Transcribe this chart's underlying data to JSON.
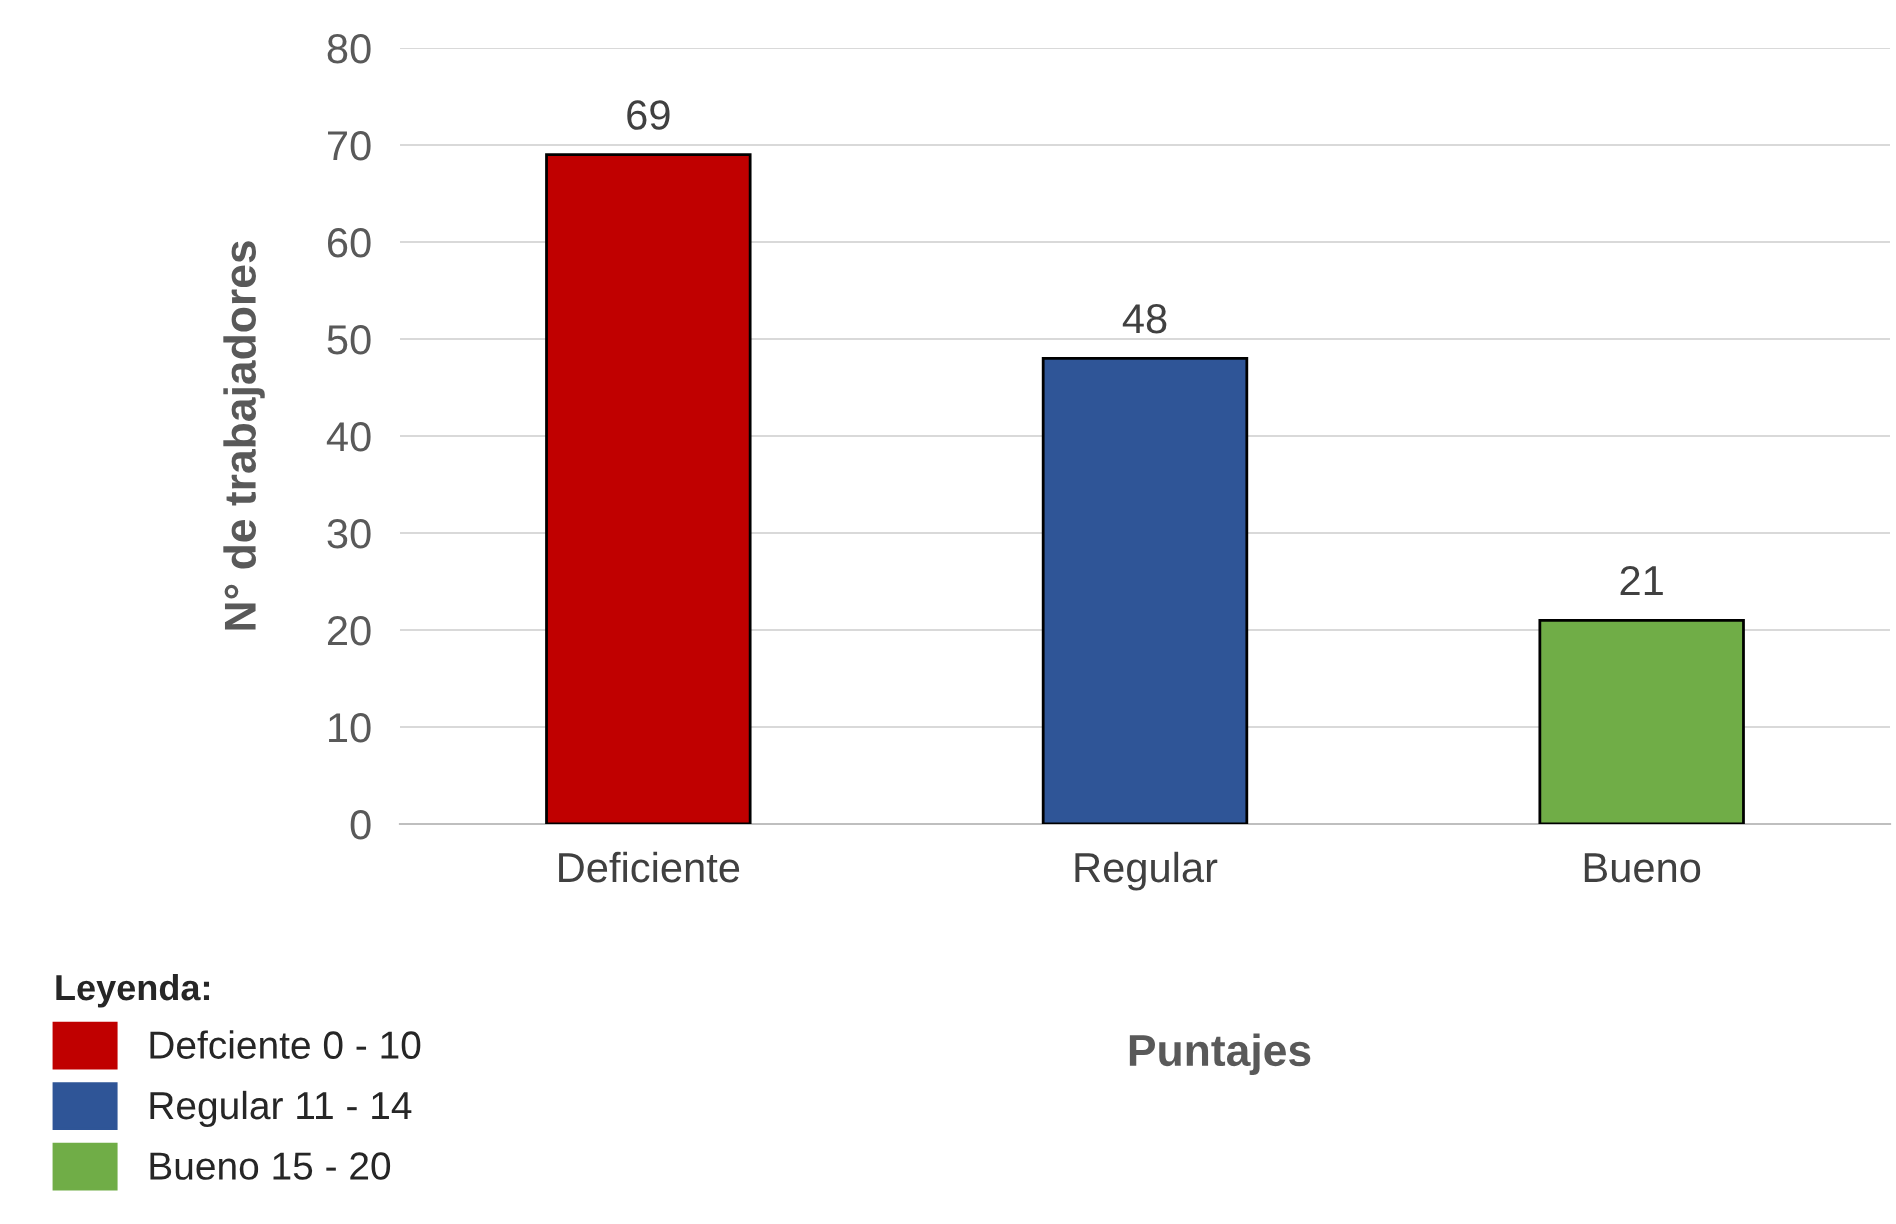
{
  "chart_data": {
    "type": "bar",
    "xlabel": "Puntajes",
    "ylabel": "N° de trabajadores",
    "legend_title": "Leyenda:",
    "categories": [
      "Deficiente",
      "Regular",
      "Bueno"
    ],
    "series": [
      {
        "name": "Defciente 0 - 10",
        "color": "#c00000",
        "values": [
          69,
          null,
          null
        ]
      },
      {
        "name": "Regular 11 - 14",
        "color": "#2f5597",
        "values": [
          null,
          48,
          null
        ]
      },
      {
        "name": "Bueno 15 - 20",
        "color": "#70ad47",
        "values": [
          null,
          null,
          21
        ]
      }
    ],
    "ylim": [
      0,
      80
    ],
    "yticks": [
      0,
      10,
      20,
      30,
      40,
      50,
      60,
      70,
      80
    ],
    "grid": "y",
    "data_labels": true,
    "legend": "bottom left"
  }
}
